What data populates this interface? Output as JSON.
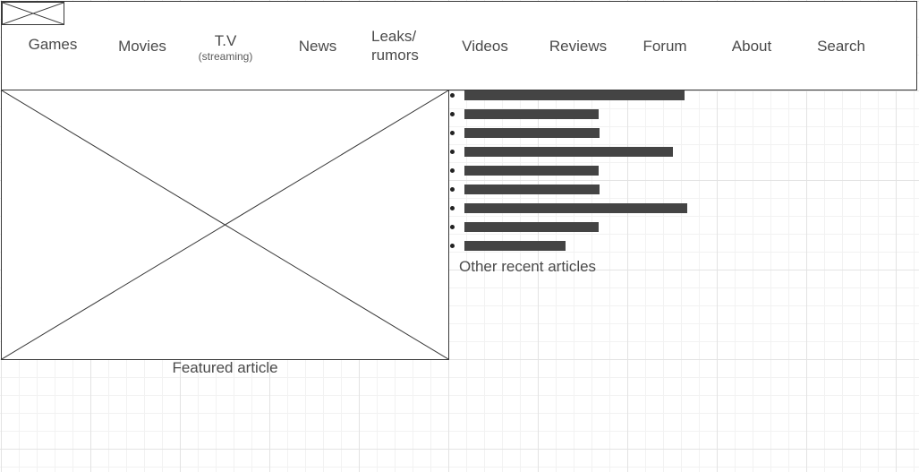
{
  "nav": {
    "items": [
      {
        "key": "games",
        "label": "Games"
      },
      {
        "key": "movies",
        "label": "Movies"
      },
      {
        "key": "tv",
        "label": "T.V",
        "sublabel": "(streaming)"
      },
      {
        "key": "news",
        "label": "News"
      },
      {
        "key": "leaks",
        "label": "Leaks/",
        "label2": "rumors"
      },
      {
        "key": "videos",
        "label": "Videos"
      },
      {
        "key": "reviews",
        "label": "Reviews"
      },
      {
        "key": "forum",
        "label": "Forum"
      },
      {
        "key": "about",
        "label": "About"
      },
      {
        "key": "search",
        "label": "Search"
      }
    ]
  },
  "featured": {
    "label": "Featured article"
  },
  "recent": {
    "label": "Other recent articles",
    "item_count": 9,
    "bar_color": "#444444"
  },
  "colors": {
    "outline": "#3a3a3a",
    "text": "#4a4a4a",
    "grid": "#e3e3e3"
  }
}
